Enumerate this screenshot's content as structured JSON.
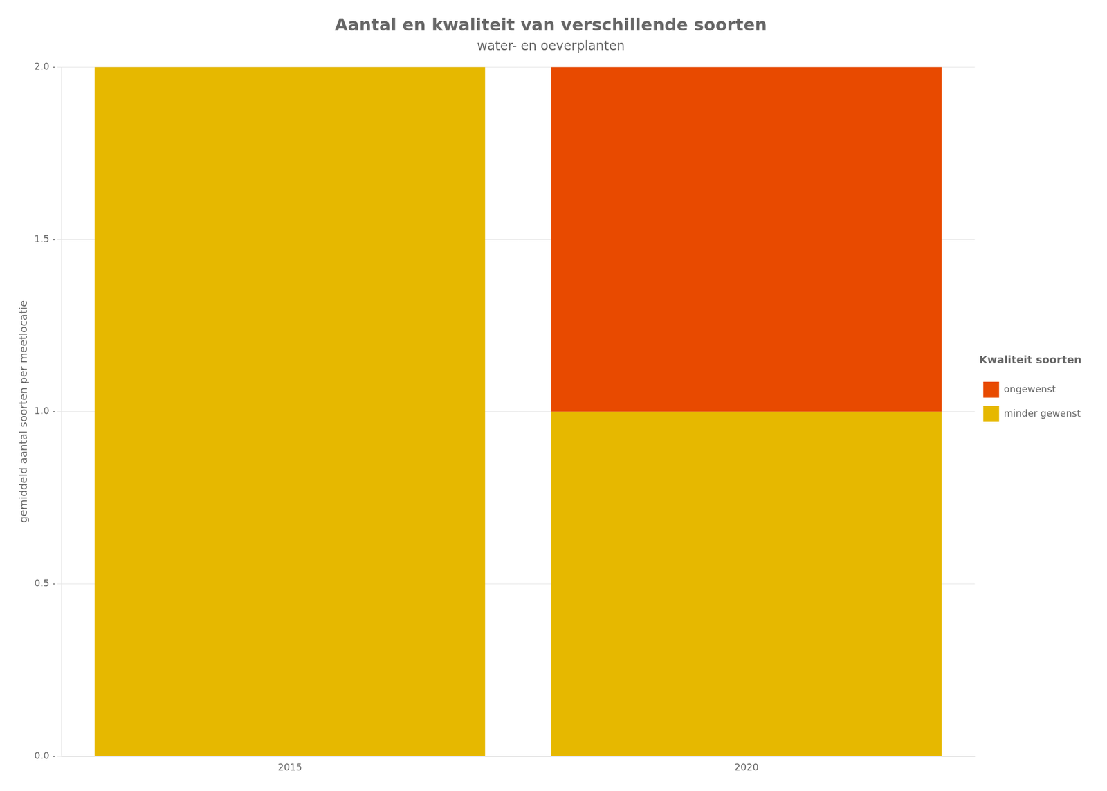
{
  "chart_data": {
    "type": "bar",
    "stacked": true,
    "title": "Aantal en kwaliteit van verschillende soorten",
    "subtitle": "water- en oeverplanten",
    "ylabel": "gemiddeld aantal soorten per meetlocatie",
    "categories": [
      "2015",
      "2020"
    ],
    "series": [
      {
        "name": "minder gewenst",
        "color": "#E6B800",
        "values": [
          2.0,
          1.0
        ]
      },
      {
        "name": "ongewenst",
        "color": "#E84A00",
        "values": [
          0.0,
          1.0
        ]
      }
    ],
    "ylim": [
      0.0,
      2.0
    ],
    "yticks": [
      {
        "value": 0.0,
        "label": "0.0 -"
      },
      {
        "value": 0.5,
        "label": "0.5 -"
      },
      {
        "value": 1.0,
        "label": "1.0 -"
      },
      {
        "value": 1.5,
        "label": "1.5 -"
      },
      {
        "value": 2.0,
        "label": "2.0 -"
      }
    ],
    "grid": true,
    "legend": "right",
    "legend_title": "Kwaliteit soorten"
  }
}
